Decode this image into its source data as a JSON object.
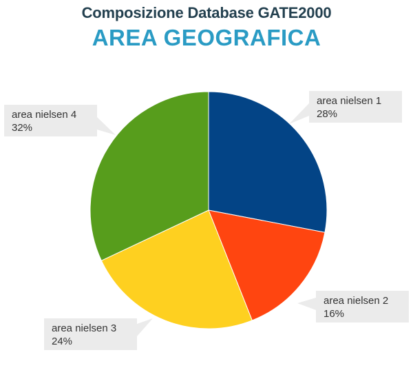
{
  "header": {
    "title": "Composizione Database GATE2000",
    "subtitle": "AREA GEOGRAFICA"
  },
  "chart_data": {
    "type": "pie",
    "slices": [
      {
        "label": "area nielsen 1",
        "value": 28,
        "value_label": "28%",
        "color": "#034486"
      },
      {
        "label": "area nielsen 2",
        "value": 16,
        "value_label": "16%",
        "color": "#ff4510"
      },
      {
        "label": "area nielsen 3",
        "value": 24,
        "value_label": "24%",
        "color": "#fed020"
      },
      {
        "label": "area nielsen 4",
        "value": 32,
        "value_label": "32%",
        "color": "#579d1c"
      }
    ],
    "callout_color": "#ebebeb",
    "legend": "none"
  }
}
